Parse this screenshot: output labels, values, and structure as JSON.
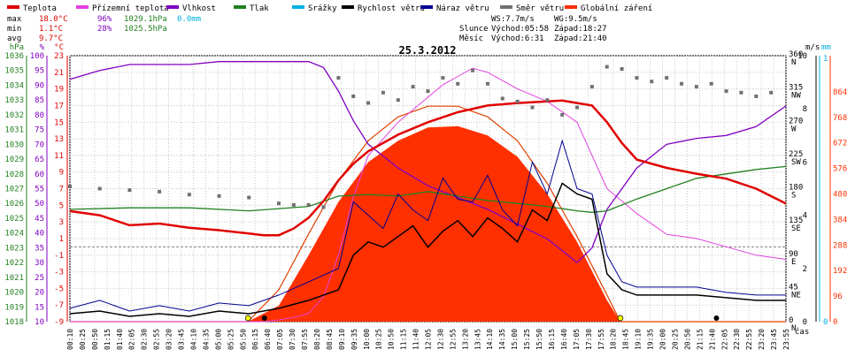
{
  "chart_data": {
    "type": "line",
    "title": "25.3.2012",
    "time_axis_label": "čas",
    "x_ticks": [
      "00:10",
      "00:25",
      "00:50",
      "01:15",
      "01:40",
      "02:05",
      "02:30",
      "02:55",
      "03:20",
      "03:45",
      "04:10",
      "04:35",
      "05:00",
      "05:25",
      "05:50",
      "06:15",
      "06:40",
      "07:05",
      "07:30",
      "07:55",
      "08:20",
      "08:45",
      "09:10",
      "09:35",
      "10:00",
      "10:25",
      "10:50",
      "11:15",
      "11:40",
      "12:05",
      "12:30",
      "12:55",
      "13:20",
      "13:45",
      "14:10",
      "14:35",
      "15:00",
      "15:25",
      "15:50",
      "16:15",
      "16:40",
      "17:05",
      "17:30",
      "17:55",
      "18:20",
      "18:45",
      "19:10",
      "19:35",
      "20:00",
      "20:25",
      "20:50",
      "21:15",
      "21:40",
      "22:05",
      "22:30",
      "22:55",
      "23:20",
      "23:45",
      "23:55"
    ],
    "legend": [
      {
        "name": "Teplota",
        "color": "#e00000"
      },
      {
        "name": "Přízemní teplota",
        "color": "#e040e0"
      },
      {
        "name": "Vlhkost",
        "color": "#8000c0"
      },
      {
        "name": "Tlak",
        "color": "#208020"
      },
      {
        "name": "Srážky",
        "color": "#00b0e0"
      },
      {
        "name": "Rychlost větru",
        "color": "#000000"
      },
      {
        "name": "Náraz větru",
        "color": "#000090"
      },
      {
        "name": "Směr větru",
        "color": "#707070"
      },
      {
        "name": "Globální záření",
        "color": "#ff3000"
      }
    ],
    "stats": {
      "max": {
        "label": "max",
        "temp": "18.0°C",
        "hum": "96%",
        "press": "1029.1hPa",
        "rain": "0.0mm"
      },
      "min": {
        "label": "min",
        "temp": "1.1°C",
        "hum": "28%",
        "press": "1025.5hPa"
      },
      "avg": {
        "label": "avg",
        "temp": "9.7°C"
      }
    },
    "info": {
      "ws": "WS:7.7m/s",
      "wg": "WG:9.5m/s",
      "sun_label": "Slunce",
      "sunrise": "Východ:05:58",
      "sunset": "Západ:18:27",
      "moon_label": "Měsíc",
      "moonrise": "Východ:6:31",
      "moonset": "Západ:21:40"
    },
    "axes": {
      "hpa": {
        "unit": "hPa",
        "ticks": [
          "1036",
          "1035",
          "1034",
          "1033",
          "1032",
          "1031",
          "1030",
          "1029",
          "1028",
          "1027",
          "1026",
          "1025",
          "1024",
          "1023",
          "1022",
          "1021",
          "1020",
          "1019",
          "1018"
        ],
        "range": [
          1018,
          1036
        ]
      },
      "hum": {
        "unit": "%",
        "ticks": [
          "100",
          "95",
          "90",
          "85",
          "80",
          "75",
          "70",
          "65",
          "60",
          "55",
          "50",
          "45",
          "40",
          "35",
          "30",
          "25",
          "20",
          "15",
          "10"
        ],
        "range": [
          10,
          100
        ]
      },
      "temp": {
        "unit": "°C",
        "ticks": [
          "23",
          "21",
          "19",
          "17",
          "15",
          "13",
          "11",
          "9",
          "7",
          "5",
          "3",
          "1",
          "-1",
          "-3",
          "-5",
          "-7",
          "-9"
        ],
        "range": [
          -9,
          23
        ]
      },
      "dir": {
        "ticks": [
          {
            "deg": "360",
            "l": "N"
          },
          {
            "deg": "315",
            "l": "NW"
          },
          {
            "deg": "270",
            "l": "W"
          },
          {
            "deg": "225",
            "l": "SW"
          },
          {
            "deg": "180",
            "l": "S"
          },
          {
            "deg": "135",
            "l": "SE"
          },
          {
            "deg": "90",
            "l": "E"
          },
          {
            "deg": "45",
            "l": "NE"
          },
          {
            "deg": "0",
            "l": "N"
          }
        ]
      },
      "wind": {
        "unit": "m/s",
        "ticks": [
          "10",
          "8",
          "6",
          "4",
          "2",
          "0"
        ],
        "range": [
          0,
          10
        ]
      },
      "rain": {
        "unit": "mm",
        "ticks": [
          "1",
          "0"
        ]
      },
      "solar": {
        "ticks": [
          "864",
          "768",
          "672",
          "576",
          "480",
          "384",
          "288",
          "192",
          "96",
          "0"
        ],
        "range": [
          0,
          1000
        ]
      }
    },
    "series": {
      "temp": {
        "x": [
          0,
          1,
          2,
          3,
          4,
          5,
          6,
          6.5,
          7,
          7.5,
          8,
          8.5,
          9,
          9.5,
          10,
          11,
          12,
          13,
          14,
          15,
          16,
          16.5,
          17,
          17.5,
          18,
          18.5,
          19,
          20,
          21,
          22,
          23,
          24
        ],
        "y": [
          4.3,
          3.8,
          2.6,
          2.8,
          2.3,
          2.0,
          1.6,
          1.4,
          1.4,
          2.2,
          3.5,
          5.5,
          8.0,
          10.0,
          11.5,
          13.5,
          15.0,
          16.2,
          17.0,
          17.3,
          17.5,
          17.6,
          17.3,
          17.0,
          15.0,
          12.5,
          10.5,
          9.5,
          8.8,
          8.2,
          7.0,
          5.2
        ]
      },
      "ground_temp": {
        "x": [
          0,
          1,
          2,
          3,
          4,
          5,
          6,
          6.5,
          7,
          7.5,
          8,
          8.5,
          9,
          9.5,
          10,
          11,
          12,
          12.5,
          13,
          13.5,
          14,
          15,
          16,
          17,
          17.5,
          18,
          19,
          20,
          21,
          22,
          23,
          24
        ],
        "y": [
          -9,
          -9,
          -9,
          -9,
          -9,
          -9,
          -9,
          -9,
          -8.8,
          -8.5,
          -8,
          -6,
          -1,
          6,
          11,
          15,
          18,
          19.5,
          20.5,
          21.5,
          21,
          19,
          17.5,
          15,
          11,
          7,
          4,
          1.5,
          1,
          0,
          -1,
          -1.5
        ]
      },
      "humidity": {
        "x": [
          0,
          1,
          2,
          3,
          4,
          5,
          6,
          7,
          8,
          8.5,
          9,
          9.5,
          10,
          11,
          12,
          13,
          14,
          15,
          16,
          16.5,
          17,
          17.5,
          18,
          19,
          20,
          21,
          22,
          23,
          24
        ],
        "y": [
          92,
          95,
          97,
          97,
          97,
          98,
          98,
          98,
          98,
          96,
          88,
          78,
          70,
          62,
          56,
          52,
          48,
          43,
          38,
          34,
          30,
          35,
          48,
          62,
          70,
          72,
          73,
          76,
          83
        ]
      },
      "pressure": {
        "x": [
          0,
          2,
          4,
          6,
          8,
          9,
          10,
          11,
          12,
          13,
          14,
          15,
          16,
          17,
          17.5,
          18,
          19,
          20,
          21,
          22,
          23,
          24
        ],
        "y": [
          1025.6,
          1025.7,
          1025.7,
          1025.5,
          1025.8,
          1026.5,
          1026.6,
          1026.5,
          1026.8,
          1026.5,
          1026.2,
          1026.0,
          1025.8,
          1025.5,
          1025.4,
          1025.5,
          1026.3,
          1027.0,
          1027.7,
          1028.0,
          1028.3,
          1028.5
        ]
      },
      "wind_speed": {
        "x": [
          0,
          1,
          2,
          3,
          4,
          5,
          6,
          7,
          8,
          9,
          9.5,
          10,
          10.5,
          11,
          11.5,
          12,
          12.5,
          13,
          13.5,
          14,
          14.5,
          15,
          15.5,
          16,
          16.5,
          17,
          17.5,
          18,
          18.5,
          19,
          20,
          21,
          22,
          23,
          24
        ],
        "y": [
          0.3,
          0.4,
          0.2,
          0.3,
          0.2,
          0.4,
          0.3,
          0.5,
          0.8,
          1.2,
          2.5,
          3.0,
          2.8,
          3.2,
          3.6,
          2.8,
          3.4,
          3.8,
          3.2,
          3.9,
          3.5,
          3.0,
          4.2,
          3.8,
          5.2,
          4.8,
          4.6,
          1.8,
          1.2,
          1.0,
          1.0,
          1.0,
          0.9,
          0.8,
          0.8
        ]
      },
      "wind_gust": {
        "x": [
          0,
          1,
          2,
          3,
          4,
          5,
          6,
          7,
          8,
          9,
          9.5,
          10,
          10.5,
          11,
          11.5,
          12,
          12.5,
          13,
          13.5,
          14,
          14.5,
          15,
          15.5,
          16,
          16.5,
          17,
          17.5,
          18,
          18.5,
          19,
          20,
          21,
          22,
          23,
          24
        ],
        "y": [
          0.5,
          0.8,
          0.4,
          0.6,
          0.4,
          0.7,
          0.6,
          1.0,
          1.5,
          2.0,
          4.5,
          4.0,
          3.5,
          4.8,
          4.2,
          3.8,
          5.4,
          4.6,
          4.5,
          5.5,
          4.2,
          3.6,
          6.0,
          4.8,
          6.8,
          5.0,
          4.8,
          2.5,
          1.5,
          1.3,
          1.3,
          1.3,
          1.1,
          1.0,
          1.0
        ]
      },
      "wind_dir": {
        "x": [
          0,
          1,
          2,
          3,
          4,
          5,
          6,
          7,
          7.5,
          8,
          8.5,
          9,
          9.5,
          10,
          10.5,
          11,
          11.5,
          12,
          12.5,
          13,
          13.5,
          14,
          14.5,
          15,
          15.5,
          16,
          16.5,
          17,
          17.5,
          18,
          18.5,
          19,
          19.5,
          20,
          20.5,
          21,
          21.5,
          22,
          22.5,
          23,
          23.5
        ],
        "y": [
          183,
          180,
          178,
          176,
          172,
          170,
          168,
          160,
          158,
          158,
          155,
          330,
          305,
          296,
          310,
          300,
          318,
          312,
          330,
          322,
          340,
          322,
          302,
          298,
          290,
          300,
          280,
          290,
          318,
          345,
          342,
          330,
          325,
          330,
          322,
          318,
          322,
          312,
          310,
          305,
          310
        ]
      },
      "solar": {
        "x": [
          0,
          5.97,
          7,
          8,
          9,
          10,
          11,
          12,
          13,
          14,
          15,
          16,
          17,
          18,
          18.45,
          24
        ],
        "y": [
          0,
          0,
          60,
          250,
          450,
          600,
          680,
          730,
          735,
          700,
          620,
          480,
          300,
          80,
          0,
          0
        ]
      },
      "solar_clear": {
        "x": [
          0,
          5.97,
          7,
          8,
          9,
          10,
          11,
          12,
          13,
          14,
          15,
          16,
          17,
          18,
          18.45,
          24
        ],
        "y": [
          0,
          0,
          120,
          330,
          530,
          680,
          770,
          810,
          810,
          770,
          680,
          520,
          320,
          100,
          0,
          0
        ]
      }
    }
  }
}
